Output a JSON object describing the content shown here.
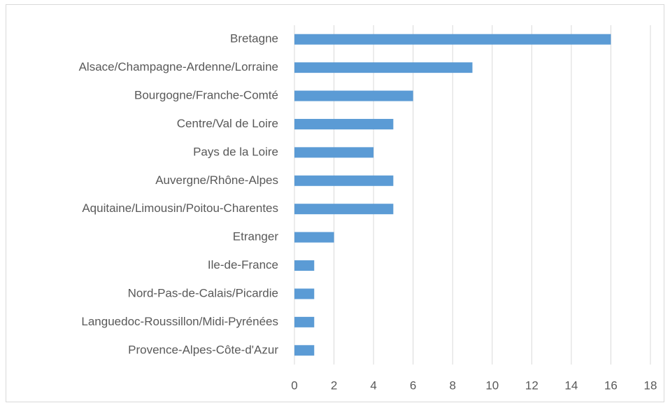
{
  "chart_data": {
    "type": "bar",
    "orientation": "horizontal",
    "categories": [
      "Bretagne",
      "Alsace/Champagne-Ardenne/Lorraine",
      "Bourgogne/Franche-Comté",
      "Centre/Val de Loire",
      "Pays de la Loire",
      "Auvergne/Rhône-Alpes",
      "Aquitaine/Limousin/Poitou-Charentes",
      "Etranger",
      "Ile-de-France",
      "Nord-Pas-de-Calais/Picardie",
      "Languedoc-Roussillon/Midi-Pyrénées",
      "Provence-Alpes-Côte-d'Azur"
    ],
    "values": [
      16,
      9,
      6,
      5,
      4,
      5,
      5,
      2,
      1,
      1,
      1,
      1
    ],
    "color": "#5b9bd5",
    "xlim": [
      0,
      18
    ],
    "xticks": [
      0,
      2,
      4,
      6,
      8,
      10,
      12,
      14,
      16,
      18
    ],
    "grid": true
  }
}
